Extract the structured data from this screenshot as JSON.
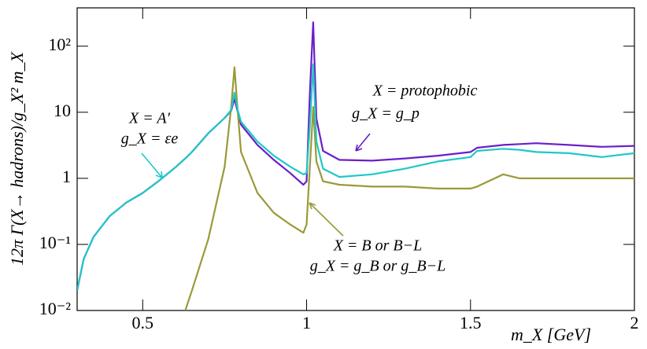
{
  "chart_data": {
    "type": "line",
    "xlabel": "m_X [GeV]",
    "ylabel": "12π Γ(X→ hadrons)/g_X² m_X",
    "log_y": true,
    "xlim": [
      0.3,
      2.0
    ],
    "xticks": [
      0.5,
      1,
      1.5,
      2
    ],
    "ylim": [
      0.01,
      380
    ],
    "yticks": [
      {
        "value": 0.01,
        "label": "10⁻²"
      },
      {
        "value": 0.1,
        "label": "10⁻¹"
      },
      1,
      10,
      {
        "value": 100,
        "label": "10²"
      }
    ],
    "x": [
      0.3,
      0.32,
      0.35,
      0.4,
      0.45,
      0.5,
      0.55,
      0.6,
      0.63,
      0.65,
      0.7,
      0.75,
      0.77,
      0.78,
      0.79,
      0.8,
      0.85,
      0.9,
      0.95,
      0.99,
      1.0,
      1.01,
      1.02,
      1.03,
      1.05,
      1.1,
      1.2,
      1.3,
      1.4,
      1.5,
      1.52,
      1.6,
      1.65,
      1.7,
      1.8,
      1.9,
      2.0
    ],
    "series": [
      {
        "name": "X = protophobic",
        "color": "#6a1fc9",
        "values": [
          0.02,
          0.06,
          0.13,
          0.27,
          0.43,
          0.6,
          0.92,
          1.47,
          2.0,
          2.5,
          4.8,
          8.2,
          10.5,
          16,
          10,
          6.5,
          3.2,
          1.9,
          1.2,
          0.8,
          0.9,
          20,
          230,
          8,
          2.6,
          1.9,
          1.85,
          2.0,
          2.2,
          2.5,
          2.9,
          3.2,
          3.3,
          3.4,
          3.2,
          3.0,
          3.1
        ]
      },
      {
        "name": "X = B or B−L",
        "color": "#9a9a38",
        "values": [
          null,
          null,
          null,
          null,
          null,
          null,
          null,
          null,
          0.01,
          0.02,
          0.12,
          1.5,
          12,
          48,
          10,
          2.5,
          0.6,
          0.3,
          0.2,
          0.15,
          0.2,
          1.5,
          12,
          1.8,
          0.9,
          0.8,
          0.75,
          0.75,
          0.7,
          0.7,
          0.75,
          1.15,
          1.0,
          1.0,
          1.0,
          1.0,
          1.0
        ]
      },
      {
        "name": "X = A′",
        "color": "#1fc8c8",
        "values": [
          0.02,
          0.06,
          0.13,
          0.27,
          0.43,
          0.6,
          0.92,
          1.47,
          2.0,
          2.5,
          4.8,
          8.2,
          10.8,
          19.8,
          10.8,
          7.2,
          3.6,
          2.2,
          1.5,
          1.15,
          1.2,
          6.3,
          53,
          3.6,
          1.4,
          1.05,
          1.15,
          1.4,
          1.8,
          2.1,
          2.6,
          2.8,
          2.7,
          2.5,
          2.4,
          2.1,
          2.4
        ]
      }
    ],
    "annotations": [
      "X = protophobic",
      "g_X = g_p",
      "X = A′",
      "g_X = εe",
      "X = B or B−L",
      "g_X = g_B or g_B−L"
    ]
  }
}
